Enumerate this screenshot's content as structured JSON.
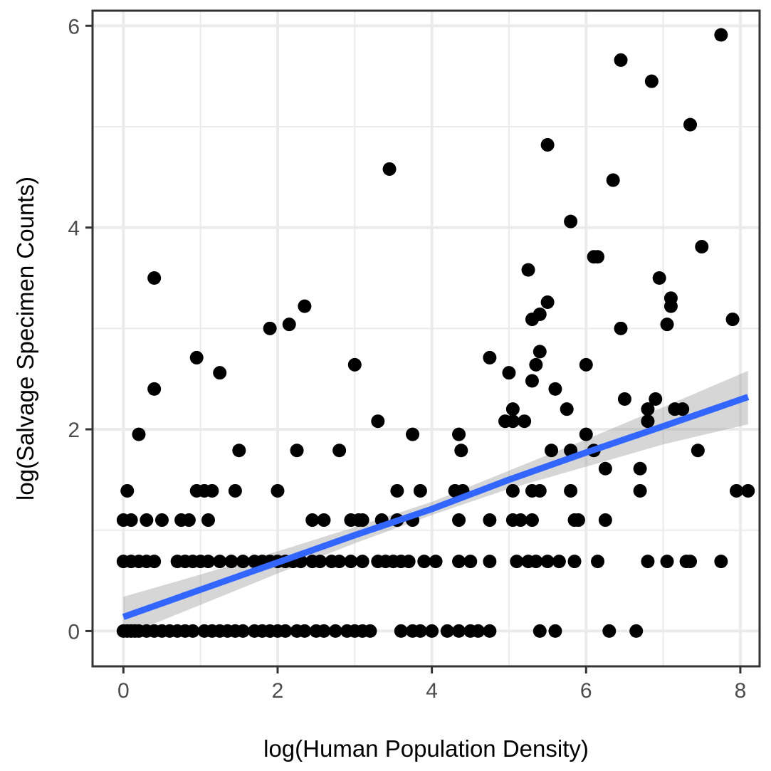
{
  "chart_data": {
    "type": "scatter",
    "title": "",
    "xlabel": "log(Human Population Density)",
    "ylabel": "log(Salvage Specimen Counts)",
    "xlim": [
      -0.4,
      8.25
    ],
    "ylim": [
      -0.35,
      6.15
    ],
    "x_ticks": [
      0,
      2,
      4,
      6,
      8
    ],
    "y_ticks": [
      0,
      2,
      4,
      6
    ],
    "x_tick_labels": [
      "0",
      "2",
      "4",
      "6",
      "8"
    ],
    "y_tick_labels": [
      "0",
      "2",
      "4",
      "6"
    ],
    "grid": true,
    "legend": "none",
    "colors": {
      "points": "#000000",
      "fit_line": "#3366ff",
      "ribbon": "#999999",
      "grid": "#ebebeb",
      "panel_border": "#333333"
    },
    "fit": {
      "x": [
        0.0,
        1.0,
        2.0,
        3.0,
        4.0,
        5.0,
        6.0,
        7.0,
        8.1
      ],
      "y": [
        0.14,
        0.41,
        0.68,
        0.95,
        1.21,
        1.5,
        1.77,
        2.03,
        2.32
      ],
      "lower": [
        -0.05,
        0.26,
        0.57,
        0.87,
        1.15,
        1.41,
        1.63,
        1.85,
        2.05
      ],
      "upper": [
        0.34,
        0.56,
        0.79,
        1.03,
        1.28,
        1.59,
        1.9,
        2.22,
        2.58
      ]
    },
    "points": [
      [
        0.0,
        0.0
      ],
      [
        0.05,
        0.0
      ],
      [
        0.1,
        0.0
      ],
      [
        0.15,
        0.0
      ],
      [
        0.2,
        0.0
      ],
      [
        0.3,
        0.0
      ],
      [
        0.4,
        0.0
      ],
      [
        0.5,
        0.0
      ],
      [
        0.6,
        0.0
      ],
      [
        0.7,
        0.0
      ],
      [
        0.8,
        0.0
      ],
      [
        0.9,
        0.0
      ],
      [
        1.05,
        0.0
      ],
      [
        1.15,
        0.0
      ],
      [
        1.25,
        0.0
      ],
      [
        1.35,
        0.0
      ],
      [
        1.45,
        0.0
      ],
      [
        1.55,
        0.0
      ],
      [
        1.7,
        0.0
      ],
      [
        1.8,
        0.0
      ],
      [
        1.9,
        0.0
      ],
      [
        2.0,
        0.0
      ],
      [
        2.1,
        0.0
      ],
      [
        2.25,
        0.0
      ],
      [
        2.35,
        0.0
      ],
      [
        2.5,
        0.0
      ],
      [
        2.6,
        0.0
      ],
      [
        2.75,
        0.0
      ],
      [
        2.9,
        0.0
      ],
      [
        3.0,
        0.0
      ],
      [
        3.1,
        0.0
      ],
      [
        3.2,
        0.0
      ],
      [
        3.6,
        0.0
      ],
      [
        3.75,
        0.0
      ],
      [
        3.85,
        0.0
      ],
      [
        4.0,
        0.0
      ],
      [
        4.2,
        0.0
      ],
      [
        4.35,
        0.0
      ],
      [
        4.5,
        0.0
      ],
      [
        4.6,
        0.0
      ],
      [
        4.75,
        0.0
      ],
      [
        5.4,
        0.0
      ],
      [
        5.6,
        0.0
      ],
      [
        6.3,
        0.0
      ],
      [
        6.65,
        0.0
      ],
      [
        0.0,
        0.69
      ],
      [
        0.1,
        0.69
      ],
      [
        0.2,
        0.69
      ],
      [
        0.3,
        0.69
      ],
      [
        0.4,
        0.69
      ],
      [
        0.7,
        0.69
      ],
      [
        0.8,
        0.69
      ],
      [
        0.9,
        0.69
      ],
      [
        1.0,
        0.69
      ],
      [
        1.1,
        0.69
      ],
      [
        1.25,
        0.69
      ],
      [
        1.4,
        0.69
      ],
      [
        1.55,
        0.69
      ],
      [
        1.7,
        0.69
      ],
      [
        1.8,
        0.69
      ],
      [
        1.9,
        0.69
      ],
      [
        2.0,
        0.69
      ],
      [
        2.1,
        0.69
      ],
      [
        2.2,
        0.69
      ],
      [
        2.3,
        0.69
      ],
      [
        2.45,
        0.69
      ],
      [
        2.55,
        0.69
      ],
      [
        2.7,
        0.69
      ],
      [
        2.8,
        0.69
      ],
      [
        2.95,
        0.69
      ],
      [
        3.1,
        0.69
      ],
      [
        3.3,
        0.69
      ],
      [
        3.4,
        0.69
      ],
      [
        3.5,
        0.69
      ],
      [
        3.6,
        0.69
      ],
      [
        3.7,
        0.69
      ],
      [
        3.9,
        0.69
      ],
      [
        4.05,
        0.69
      ],
      [
        4.35,
        0.69
      ],
      [
        4.5,
        0.69
      ],
      [
        4.75,
        0.69
      ],
      [
        5.1,
        0.69
      ],
      [
        5.25,
        0.69
      ],
      [
        5.35,
        0.69
      ],
      [
        5.5,
        0.69
      ],
      [
        5.65,
        0.69
      ],
      [
        5.85,
        0.69
      ],
      [
        6.15,
        0.69
      ],
      [
        6.8,
        0.69
      ],
      [
        7.05,
        0.69
      ],
      [
        7.3,
        0.69
      ],
      [
        7.35,
        0.69
      ],
      [
        7.75,
        0.69
      ],
      [
        0.0,
        1.1
      ],
      [
        0.1,
        1.1
      ],
      [
        0.3,
        1.1
      ],
      [
        0.5,
        1.1
      ],
      [
        0.75,
        1.1
      ],
      [
        0.85,
        1.1
      ],
      [
        1.1,
        1.1
      ],
      [
        2.45,
        1.1
      ],
      [
        2.6,
        1.1
      ],
      [
        2.95,
        1.1
      ],
      [
        3.05,
        1.1
      ],
      [
        3.1,
        1.1
      ],
      [
        3.35,
        1.1
      ],
      [
        3.55,
        1.1
      ],
      [
        3.75,
        1.1
      ],
      [
        4.35,
        1.1
      ],
      [
        4.75,
        1.1
      ],
      [
        5.05,
        1.1
      ],
      [
        5.15,
        1.1
      ],
      [
        5.3,
        1.1
      ],
      [
        5.85,
        1.1
      ],
      [
        5.9,
        1.1
      ],
      [
        6.25,
        1.1
      ],
      [
        0.05,
        1.39
      ],
      [
        0.95,
        1.39
      ],
      [
        1.05,
        1.39
      ],
      [
        1.15,
        1.39
      ],
      [
        1.45,
        1.39
      ],
      [
        2.0,
        1.39
      ],
      [
        3.55,
        1.39
      ],
      [
        3.85,
        1.39
      ],
      [
        4.3,
        1.39
      ],
      [
        4.4,
        1.39
      ],
      [
        5.05,
        1.39
      ],
      [
        5.3,
        1.39
      ],
      [
        5.4,
        1.39
      ],
      [
        5.8,
        1.39
      ],
      [
        6.7,
        1.39
      ],
      [
        7.95,
        1.39
      ],
      [
        8.1,
        1.39
      ],
      [
        0.2,
        1.95
      ],
      [
        1.5,
        1.79
      ],
      [
        2.25,
        1.79
      ],
      [
        2.8,
        1.79
      ],
      [
        3.3,
        2.08
      ],
      [
        3.75,
        1.95
      ],
      [
        4.35,
        1.95
      ],
      [
        4.38,
        1.79
      ],
      [
        4.95,
        2.08
      ],
      [
        5.05,
        2.08
      ],
      [
        5.05,
        2.2
      ],
      [
        5.2,
        2.08
      ],
      [
        5.55,
        1.79
      ],
      [
        5.8,
        1.79
      ],
      [
        6.0,
        1.95
      ],
      [
        6.1,
        1.79
      ],
      [
        6.25,
        1.61
      ],
      [
        6.7,
        1.61
      ],
      [
        6.8,
        2.08
      ],
      [
        6.8,
        2.2
      ],
      [
        6.9,
        2.3
      ],
      [
        7.15,
        2.2
      ],
      [
        7.25,
        2.2
      ],
      [
        7.45,
        1.79
      ],
      [
        0.4,
        2.4
      ],
      [
        0.95,
        2.71
      ],
      [
        1.25,
        2.56
      ],
      [
        3.0,
        2.64
      ],
      [
        4.75,
        2.71
      ],
      [
        5.0,
        2.56
      ],
      [
        5.3,
        2.48
      ],
      [
        5.35,
        2.64
      ],
      [
        5.4,
        2.77
      ],
      [
        5.6,
        2.4
      ],
      [
        5.75,
        2.2
      ],
      [
        6.0,
        2.64
      ],
      [
        6.5,
        2.3
      ],
      [
        0.4,
        3.5
      ],
      [
        1.9,
        3.0
      ],
      [
        2.15,
        3.04
      ],
      [
        2.35,
        3.22
      ],
      [
        5.25,
        3.58
      ],
      [
        5.3,
        3.09
      ],
      [
        5.4,
        3.14
      ],
      [
        5.5,
        3.26
      ],
      [
        6.1,
        3.71
      ],
      [
        6.15,
        3.71
      ],
      [
        6.45,
        3.0
      ],
      [
        6.95,
        3.5
      ],
      [
        7.05,
        3.04
      ],
      [
        7.1,
        3.3
      ],
      [
        7.1,
        3.22
      ],
      [
        7.5,
        3.81
      ],
      [
        7.9,
        3.09
      ],
      [
        3.45,
        4.58
      ],
      [
        5.5,
        4.82
      ],
      [
        5.8,
        4.06
      ],
      [
        6.35,
        4.47
      ],
      [
        6.45,
        5.66
      ],
      [
        6.85,
        5.45
      ],
      [
        7.35,
        5.02
      ],
      [
        7.75,
        5.91
      ]
    ]
  }
}
